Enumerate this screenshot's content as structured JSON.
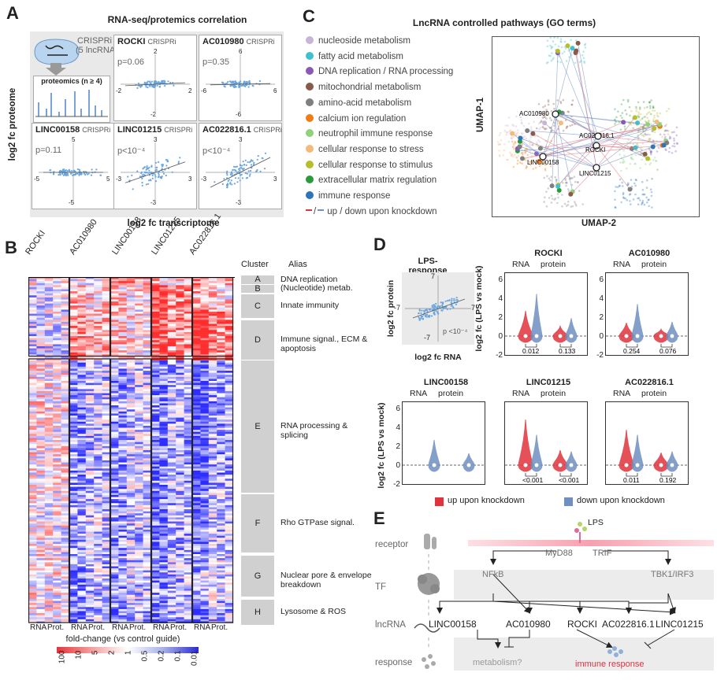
{
  "panels": {
    "a": {
      "letter": "A",
      "title": "RNA-seq/protemics correlation",
      "crispri_label": "CRISPRi",
      "crispri_sub": "(5 lncRNAs)",
      "proteomics_label": "proteomics (n ≥ 4)",
      "ylabel": "log2 fc proteome",
      "xlabel": "log2 fc transcriptome",
      "plots": [
        {
          "name": "ROCKI",
          "tag": "CRISPRi",
          "p": "p=0.06",
          "ymax": "2",
          "ymin": "-2",
          "xmin": "-2",
          "xmax": "2"
        },
        {
          "name": "AC010980",
          "tag": "CRISPRi",
          "p": "p=0.35",
          "ymax": "6",
          "ymin": "-6",
          "xmin": "-6",
          "xmax": "6"
        },
        {
          "name": "LINC00158",
          "tag": "CRISPRi",
          "p": "p=0.11",
          "ymax": "5",
          "ymin": "-5",
          "xmin": "-5",
          "xmax": "5"
        },
        {
          "name": "LINC01215",
          "tag": "CRISPRi",
          "p": "p<10⁻⁴",
          "ymax": "3",
          "ymin": "-3",
          "xmin": "-3",
          "xmax": "3"
        },
        {
          "name": "AC022816.1",
          "tag": "CRISPRi",
          "p": "p<10⁻⁴",
          "ymax": "3",
          "ymin": "-3",
          "xmin": "-3",
          "xmax": "3"
        }
      ]
    },
    "b": {
      "letter": "B",
      "columns": [
        "ROCKI",
        "AC010980",
        "LINC00158",
        "LINC01215",
        "AC022816.1"
      ],
      "bottom_labels": [
        "RNA",
        "Prot.",
        "RNA",
        "Prot.",
        "RNA",
        "Prot.",
        "RNA",
        "Prot.",
        "RNA",
        "Prot."
      ],
      "cluster_header": "Cluster",
      "alias_header": "Alias",
      "clusters": [
        {
          "id": "A",
          "alias": "DNA replication"
        },
        {
          "id": "B",
          "alias": "(Nucleotide) metab."
        },
        {
          "id": "C",
          "alias": "Innate immunity"
        },
        {
          "id": "D",
          "alias": "Immune signal., ECM & apoptosis"
        },
        {
          "id": "E",
          "alias": "RNA processing & splicing"
        },
        {
          "id": "F",
          "alias": "Rho GTPase signal."
        },
        {
          "id": "G",
          "alias": "Nuclear pore & envelope breakdown"
        },
        {
          "id": "H",
          "alias": "Lysosome & ROS"
        }
      ],
      "legend_title": "fold-change (vs control guide)",
      "legend_ticks": [
        "100",
        "10",
        "5",
        "2",
        "1",
        "0.5",
        "0.2",
        "0.1",
        "0.01"
      ]
    },
    "c": {
      "letter": "C",
      "title": "LncRNA controlled pathways (GO terms)",
      "terms": [
        {
          "label": "nucleoside metabolism",
          "color": "#c9b3d6"
        },
        {
          "label": "fatty acid metabolism",
          "color": "#3fbfcf"
        },
        {
          "label": "DNA replication / RNA processing",
          "color": "#8a59b8"
        },
        {
          "label": "mitochondrial metabolism",
          "color": "#8a5a48"
        },
        {
          "label": "amino-acid metabolism",
          "color": "#7f7f7f"
        },
        {
          "label": "calcium ion regulation",
          "color": "#ee7d14"
        },
        {
          "label": "neutrophil immune response",
          "color": "#8fd17d"
        },
        {
          "label": "cellular response to stress",
          "color": "#f5b97a"
        },
        {
          "label": "cellular response to stimulus",
          "color": "#b8bd2a"
        },
        {
          "label": "extracellular matrix regulation",
          "color": "#2a9a3a"
        },
        {
          "label": "immune response",
          "color": "#2d74b8"
        }
      ],
      "updown_label": "up / down upon knockdown",
      "umap_y": "UMAP-1",
      "umap_x": "UMAP-2",
      "nodes": [
        "AC010980",
        "AC022816.1",
        "ROCKI",
        "LINC00158",
        "LINC01215"
      ]
    },
    "d": {
      "letter": "D",
      "lps_title": "LPS-response",
      "lps_ylabel": "log2 fc protein",
      "lps_xlabel": "log2 fc RNA",
      "lps_p": "p <10⁻⁴",
      "lps_ticks": [
        "7",
        "-7",
        "7",
        "-7"
      ],
      "violin_ylabel": "log2 fc (LPS vs mock)",
      "rna_label": "RNA",
      "protein_label": "protein",
      "yticks": [
        "6",
        "4",
        "2",
        "0",
        "-2"
      ],
      "violins": [
        {
          "name": "ROCKI",
          "p_rna": "0.012",
          "p_prot": "0.133"
        },
        {
          "name": "AC010980",
          "p_rna": "0.254",
          "p_prot": "0.076"
        },
        {
          "name": "LINC00158",
          "p_rna": "",
          "p_prot": ""
        },
        {
          "name": "LINC01215",
          "p_rna": "<0.001",
          "p_prot": "<0.001"
        },
        {
          "name": "AC022816.1",
          "p_rna": "0.011",
          "p_prot": "0.192"
        }
      ],
      "legend_up": "up upon knockdown",
      "legend_down": "down upon knockdown",
      "color_up": "#e0333c",
      "color_down": "#6f8fc0"
    },
    "e": {
      "letter": "E",
      "rows": [
        "receptor",
        "TF",
        "lncRNA",
        "response"
      ],
      "lps": "LPS",
      "myd88": "MyD88",
      "trif": "TRIF",
      "nfkb": "NFkB",
      "tbk": "TBK1/IRF3",
      "lncrnas": [
        "LINC00158",
        "AC010980",
        "ROCKI",
        "AC022816.1",
        "LINC01215"
      ],
      "metabolism": "metabolism?",
      "immune": "immune response"
    }
  }
}
